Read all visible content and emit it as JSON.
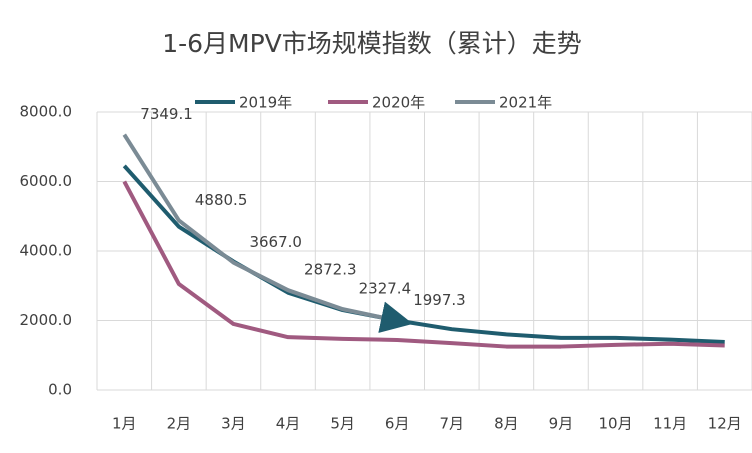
{
  "chart_data": {
    "type": "line",
    "title": "1-6月MPV市场规模指数（累计）走势",
    "categories": [
      "1月",
      "2月",
      "3月",
      "4月",
      "5月",
      "6月",
      "7月",
      "8月",
      "9月",
      "10月",
      "11月",
      "12月"
    ],
    "series": [
      {
        "name": "2019年",
        "color": "#1f5c6e",
        "values": [
          6450,
          4700,
          3700,
          2800,
          2300,
          2000,
          1750,
          1600,
          1500,
          1500,
          1450,
          1380
        ]
      },
      {
        "name": "2020年",
        "color": "#a05a80",
        "values": [
          6000,
          3050,
          1900,
          1520,
          1470,
          1440,
          1350,
          1250,
          1250,
          1300,
          1330,
          1280
        ]
      },
      {
        "name": "2021年",
        "color": "#7b8b95",
        "values": [
          7349.1,
          4880.5,
          3667.0,
          2872.3,
          2327.4,
          1997.3,
          null,
          null,
          null,
          null,
          null,
          null
        ],
        "value_labels": [
          "7349.1",
          "4880.5",
          "3667.0",
          "2872.3",
          "2327.4",
          "1997.3",
          null,
          null,
          null,
          null,
          null,
          null
        ]
      }
    ],
    "ylim": [
      0,
      8000
    ],
    "yticks": [
      {
        "value": 0,
        "label": "0.0"
      },
      {
        "value": 2000,
        "label": "2000.0"
      },
      {
        "value": 4000,
        "label": "4000.0"
      },
      {
        "value": 6000,
        "label": "6000.0"
      },
      {
        "value": 8000,
        "label": "8000.0"
      }
    ],
    "grid": true,
    "legend": "top"
  }
}
